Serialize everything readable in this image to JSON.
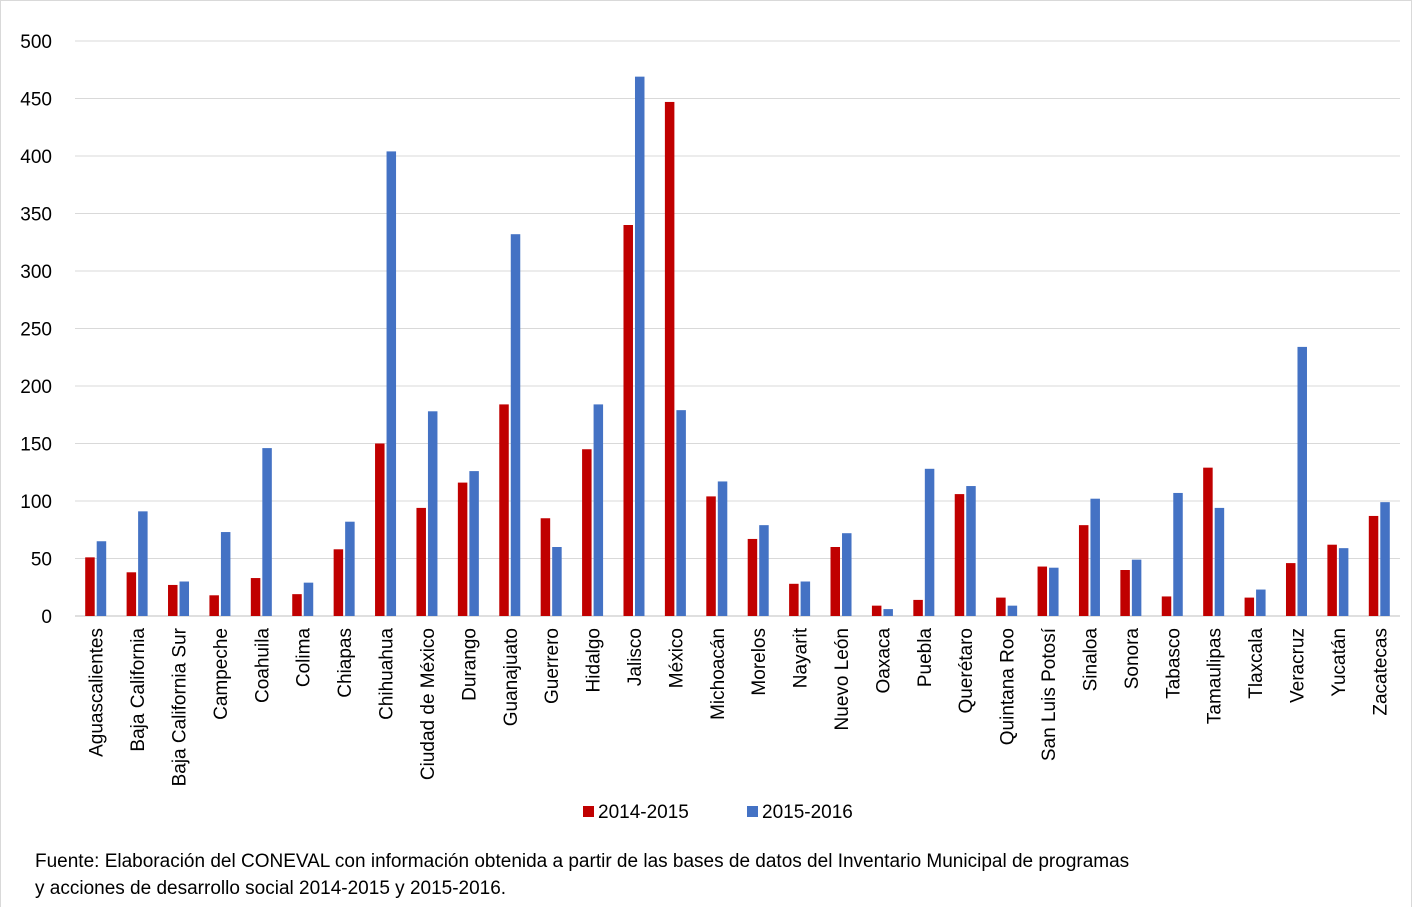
{
  "chart_data": {
    "type": "bar",
    "title": "",
    "xlabel": "",
    "ylabel": "",
    "ylim": [
      0,
      500
    ],
    "yticks": [
      0,
      50,
      100,
      150,
      200,
      250,
      300,
      350,
      400,
      450,
      500
    ],
    "grid": "horizontal",
    "legend_position": "bottom",
    "categories": [
      "Aguascalientes",
      "Baja California",
      "Baja California Sur",
      "Campeche",
      "Coahuila",
      "Colima",
      "Chiapas",
      "Chihuahua",
      "Ciudad de México",
      "Durango",
      "Guanajuato",
      "Guerrero",
      "Hidalgo",
      "Jalisco",
      "México",
      "Michoacán",
      "Morelos",
      "Nayarit",
      "Nuevo León",
      "Oaxaca",
      "Puebla",
      "Querétaro",
      "Quintana Roo",
      "San Luis Potosí",
      "Sinaloa",
      "Sonora",
      "Tabasco",
      "Tamaulipas",
      "Tlaxcala",
      "Veracruz",
      "Yucatán",
      "Zacatecas"
    ],
    "series": [
      {
        "name": "2014-2015",
        "color": "#c00000",
        "values": [
          51,
          38,
          27,
          18,
          33,
          19,
          58,
          150,
          94,
          116,
          184,
          85,
          145,
          340,
          447,
          104,
          67,
          28,
          60,
          9,
          14,
          106,
          16,
          43,
          79,
          40,
          17,
          129,
          16,
          46,
          62,
          87
        ]
      },
      {
        "name": "2015-2016",
        "color": "#4472c4",
        "values": [
          65,
          91,
          30,
          73,
          146,
          29,
          82,
          404,
          178,
          126,
          332,
          60,
          184,
          469,
          179,
          117,
          79,
          30,
          72,
          6,
          128,
          113,
          9,
          42,
          102,
          49,
          107,
          94,
          23,
          234,
          59,
          99
        ]
      }
    ]
  },
  "source": {
    "line1": "Fuente: Elaboración del CONEVAL con información obtenida a partir de las bases de datos del Inventario Municipal de programas",
    "line2": "y acciones de desarrollo social 2014-2015 y 2015-2016."
  }
}
